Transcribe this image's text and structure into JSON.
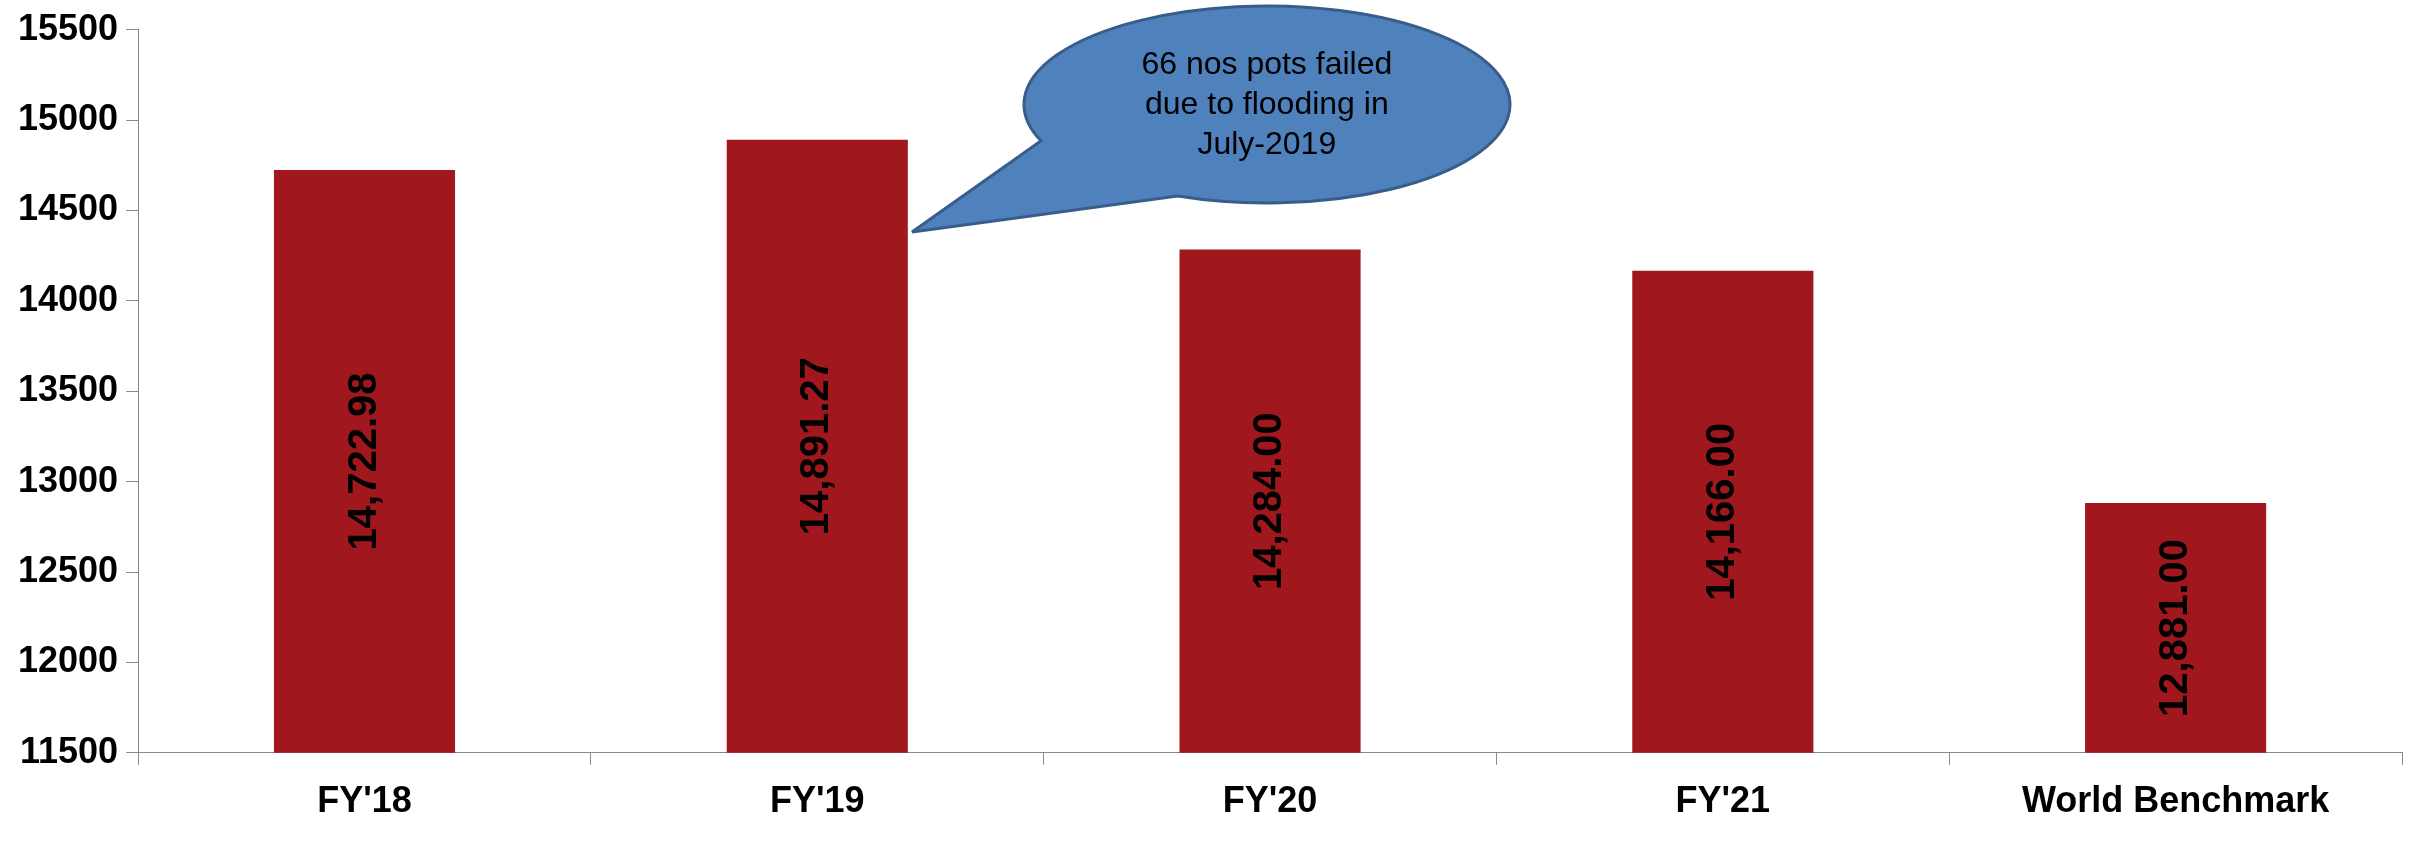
{
  "chart_data": {
    "type": "bar",
    "categories": [
      "FY'18",
      "FY'19",
      "FY'20",
      "FY'21",
      "World Benchmark"
    ],
    "values": [
      14722.98,
      14891.27,
      14284.0,
      14166.0,
      12881.0
    ],
    "value_labels": [
      "14,722.98",
      "14,891.27",
      "14,284.00",
      "14,166.00",
      "12,881.00"
    ],
    "color": "#a0171e",
    "ylim": [
      11500,
      15500
    ],
    "yticks": [
      11500,
      12000,
      12500,
      13000,
      13500,
      14000,
      14500,
      15000,
      15500
    ],
    "grid": false,
    "legend": false,
    "annotations": [
      "66 nos pots failed due to flooding in July-2019"
    ]
  }
}
